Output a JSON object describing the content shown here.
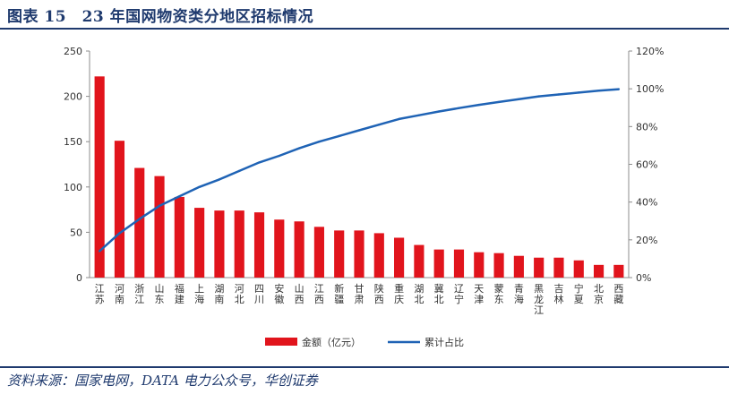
{
  "header": {
    "title": "图表 15　23 年国网物资类分地区招标情况",
    "source": "资料来源：国家电网，DATA 电力公众号，华创证券"
  },
  "chart_data": {
    "type": "bar",
    "title": "",
    "categories": [
      "江苏",
      "河南",
      "浙江",
      "山东",
      "福建",
      "上海",
      "湖南",
      "河北",
      "四川",
      "安徽",
      "山西",
      "江西",
      "新疆",
      "甘肃",
      "陕西",
      "重庆",
      "湖北",
      "冀北",
      "辽宁",
      "天津",
      "蒙东",
      "青海",
      "黑龙江",
      "吉林",
      "宁夏",
      "北京",
      "西藏"
    ],
    "series": [
      {
        "name": "金额（亿元）",
        "type": "bar",
        "axis": "left",
        "color": "#e1141c",
        "values": [
          222,
          151,
          121,
          112,
          89,
          77,
          74,
          74,
          72,
          64,
          62,
          56,
          52,
          52,
          49,
          44,
          36,
          31,
          31,
          28,
          27,
          24,
          22,
          22,
          19,
          14,
          14
        ]
      },
      {
        "name": "累计占比",
        "type": "line",
        "axis": "right",
        "color": "#1f63b5",
        "values": [
          14,
          23.5,
          31,
          38,
          43,
          48,
          52,
          56.5,
          61,
          64.5,
          68.5,
          72,
          75,
          78,
          81,
          84,
          86,
          88,
          89.8,
          91.5,
          93,
          94.5,
          96,
          97,
          98,
          99,
          99.8
        ]
      }
    ],
    "y_left": {
      "min": 0,
      "max": 250,
      "step": 50,
      "ticks": [
        "0",
        "50",
        "100",
        "150",
        "200",
        "250"
      ]
    },
    "y_right": {
      "min": 0,
      "max": 120,
      "step": 20,
      "ticks": [
        "0%",
        "20%",
        "40%",
        "60%",
        "80%",
        "100%",
        "120%"
      ]
    },
    "grid": false,
    "legend": "bottom-center"
  }
}
